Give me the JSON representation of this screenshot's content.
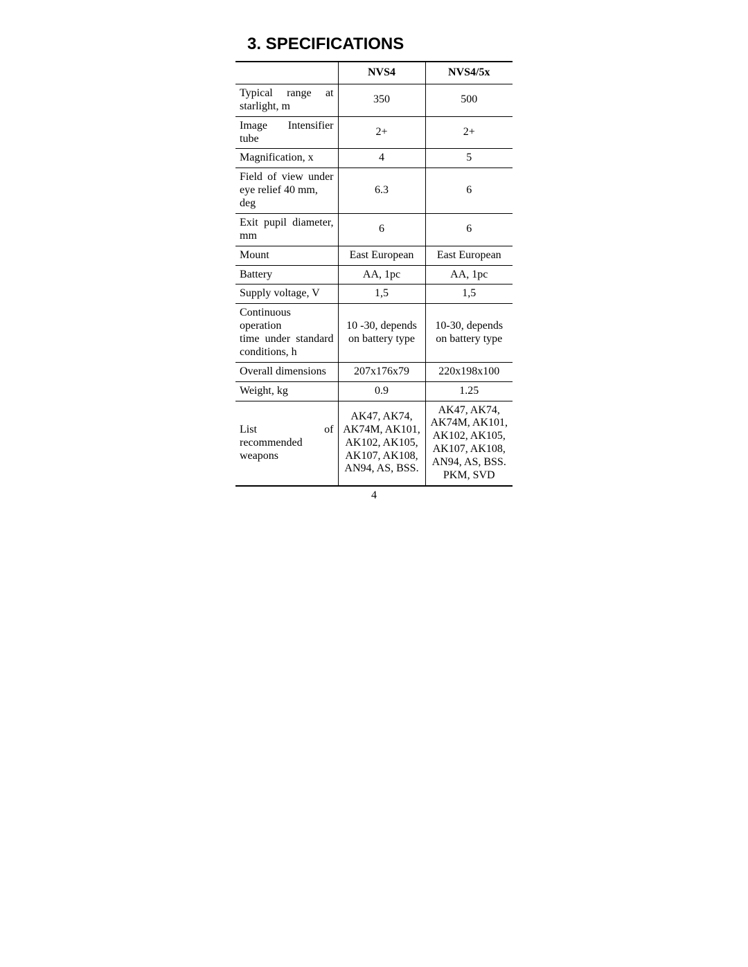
{
  "heading": "3.  SPECIFICATIONS",
  "page_number": "4",
  "table": {
    "columns": [
      "",
      "NVS4",
      "NVS4/5x"
    ],
    "rows": [
      {
        "label": "Typical range at starlight, m",
        "justify_full": true,
        "line2": "starlight, m",
        "line1": "Typical range at",
        "tall": false,
        "col1": "350",
        "col2": "500"
      },
      {
        "label": "Image Intensifier tube",
        "col1": "2+",
        "col2": "2+"
      },
      {
        "label": "Magnification, x",
        "tall": true,
        "col1": "4",
        "col2": "5"
      },
      {
        "label_line1": "Field of view under",
        "label_line2": "eye relief 40 mm, deg",
        "justify_line1": true,
        "col1": "6.3",
        "col2": "6"
      },
      {
        "label_line1": "Exit pupil diameter,",
        "label_line2": "mm",
        "justify_line1": true,
        "col1": "6",
        "col2": "6"
      },
      {
        "label": "Mount",
        "col1": "East European",
        "col2": "East European"
      },
      {
        "label": "Battery",
        "col1": "AA, 1pc",
        "col2": "AA, 1pc"
      },
      {
        "label": "Supply voltage, V",
        "tall": true,
        "col1": "1,5",
        "col2": "1,5"
      },
      {
        "label_line1": "Continuous operation",
        "label_line2a": "time under standard",
        "label_line3": "conditions, h",
        "justify_line1": true,
        "justify_line2": true,
        "col1": "10 -30, depends on battery type",
        "col2": "10-30, depends on battery type"
      },
      {
        "label": "Overall dimensions",
        "col1": "207x176x79",
        "col2": "220x198x100"
      },
      {
        "label": "Weight, kg",
        "col1": "0.9",
        "col2": "1.25"
      },
      {
        "label_line1": "List of recommended",
        "label_line2": "weapons",
        "justify_line1": true,
        "col1": "AK47, AK74, AK74M, AK101, AK102, AK105, AK107, AK108, AN94, AS, BSS.",
        "col2": "AK47, AK74, AK74M, AK101, AK102, AK105, AK107, AK108, AN94, AS, BSS. PKM, SVD"
      }
    ]
  }
}
